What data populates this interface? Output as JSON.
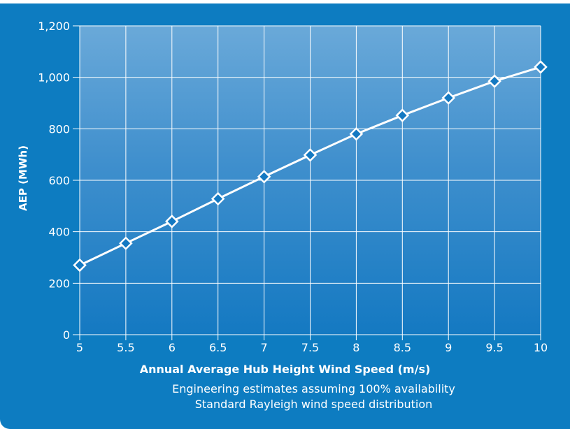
{
  "chart_data": {
    "type": "line",
    "xlabel": "Annual Average Hub Height Wind Speed (m/s)",
    "ylabel": "AEP (MWh)",
    "notes": [
      "Engineering estimates assuming 100% availability",
      "Standard Rayleigh wind speed distribution"
    ],
    "x": [
      5,
      5.5,
      6,
      6.5,
      7,
      7.5,
      8,
      8.5,
      9,
      9.5,
      10
    ],
    "x_tick_labels": [
      "5",
      "5.5",
      "6",
      "6.5",
      "7",
      "7.5",
      "8",
      "8.5",
      "9",
      "9.5",
      "10"
    ],
    "y_ticks": [
      0,
      200,
      400,
      600,
      800,
      1000,
      1200
    ],
    "y_tick_labels": [
      "0",
      "200",
      "400",
      "600",
      "800",
      "1,000",
      "1,200"
    ],
    "xlim": [
      5,
      10
    ],
    "ylim": [
      0,
      1200
    ],
    "grid": true,
    "series": [
      {
        "values": [
          270,
          355,
          440,
          528,
          614,
          698,
          780,
          852,
          920,
          985,
          1040
        ]
      }
    ],
    "colors": {
      "background": "#0d7cc1",
      "plot_top": "#6aa9d9",
      "line": "#ffffff",
      "marker_fill": "#1479c2"
    },
    "marker": "diamond"
  }
}
